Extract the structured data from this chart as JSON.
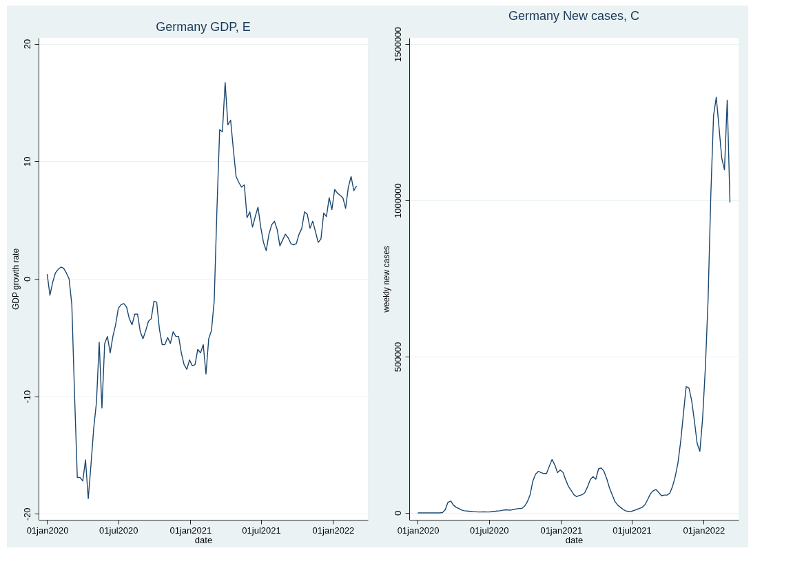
{
  "chart_data": [
    {
      "type": "line",
      "title": "Germany GDP, E",
      "xlabel": "date",
      "ylabel": "GDP growth rate",
      "grid": "y",
      "x": [
        "2020-01-01",
        "2020-01-08",
        "2020-01-15",
        "2020-01-22",
        "2020-01-29",
        "2020-02-05",
        "2020-02-12",
        "2020-02-19",
        "2020-02-26",
        "2020-03-04",
        "2020-03-11",
        "2020-03-18",
        "2020-03-25",
        "2020-04-01",
        "2020-04-08",
        "2020-04-15",
        "2020-04-22",
        "2020-04-29",
        "2020-05-06",
        "2020-05-13",
        "2020-05-20",
        "2020-05-27",
        "2020-06-03",
        "2020-06-10",
        "2020-06-17",
        "2020-06-24",
        "2020-07-01",
        "2020-07-08",
        "2020-07-15",
        "2020-07-22",
        "2020-07-29",
        "2020-08-05",
        "2020-08-12",
        "2020-08-19",
        "2020-08-26",
        "2020-09-02",
        "2020-09-09",
        "2020-09-16",
        "2020-09-23",
        "2020-09-30",
        "2020-10-07",
        "2020-10-14",
        "2020-10-21",
        "2020-10-28",
        "2020-11-04",
        "2020-11-11",
        "2020-11-18",
        "2020-11-25",
        "2020-12-02",
        "2020-12-09",
        "2020-12-16",
        "2020-12-23",
        "2020-12-30",
        "2021-01-06",
        "2021-01-13",
        "2021-01-20",
        "2021-01-27",
        "2021-02-03",
        "2021-02-10",
        "2021-02-17",
        "2021-02-24",
        "2021-03-03",
        "2021-03-10",
        "2021-03-17",
        "2021-03-24",
        "2021-03-31",
        "2021-04-07",
        "2021-04-14",
        "2021-04-21",
        "2021-04-28",
        "2021-05-05",
        "2021-05-12",
        "2021-05-19",
        "2021-05-26",
        "2021-06-02",
        "2021-06-09",
        "2021-06-16",
        "2021-06-23",
        "2021-06-30",
        "2021-07-07",
        "2021-07-14",
        "2021-07-21",
        "2021-07-28",
        "2021-08-04",
        "2021-08-11",
        "2021-08-18",
        "2021-08-25",
        "2021-09-01",
        "2021-09-08",
        "2021-09-15",
        "2021-09-22",
        "2021-09-29",
        "2021-10-06",
        "2021-10-13",
        "2021-10-20",
        "2021-10-27",
        "2021-11-03",
        "2021-11-10",
        "2021-11-17",
        "2021-11-24",
        "2021-12-01",
        "2021-12-08",
        "2021-12-15",
        "2021-12-22",
        "2021-12-29",
        "2022-01-05",
        "2022-01-12",
        "2022-01-19",
        "2022-01-26",
        "2022-02-02",
        "2022-02-09",
        "2022-02-16",
        "2022-02-23",
        "2022-03-02"
      ],
      "series": [
        {
          "color": "#1a476f",
          "values": [
            0.4,
            -1.4,
            -0.3,
            0.5,
            0.8,
            1.0,
            0.9,
            0.5,
            0.0,
            -2.2,
            -9.9,
            -16.9,
            -16.9,
            -17.2,
            -15.4,
            -18.7,
            -15.8,
            -12.7,
            -10.5,
            -5.4,
            -11.0,
            -5.5,
            -4.9,
            -6.3,
            -4.9,
            -3.9,
            -2.5,
            -2.2,
            -2.1,
            -2.4,
            -3.4,
            -3.9,
            -3.0,
            -3.0,
            -4.5,
            -5.1,
            -4.4,
            -3.6,
            -3.4,
            -1.9,
            -2.0,
            -4.3,
            -5.6,
            -5.6,
            -5.0,
            -5.5,
            -4.5,
            -4.9,
            -4.9,
            -6.3,
            -7.3,
            -7.7,
            -6.9,
            -7.4,
            -7.3,
            -6.0,
            -6.3,
            -5.6,
            -8.1,
            -5.1,
            -4.4,
            -1.9,
            5.9,
            12.7,
            12.5,
            16.7,
            13.1,
            13.5,
            11.0,
            8.7,
            8.2,
            7.8,
            8.0,
            5.2,
            5.7,
            4.4,
            5.3,
            6.1,
            4.4,
            3.1,
            2.4,
            3.8,
            4.6,
            4.9,
            4.2,
            2.8,
            3.3,
            3.8,
            3.5,
            3.0,
            2.9,
            3.0,
            3.8,
            4.3,
            5.7,
            5.5,
            4.3,
            4.9,
            4.0,
            3.1,
            3.4,
            5.6,
            5.3,
            6.9,
            5.9,
            7.6,
            7.3,
            7.1,
            6.9,
            6.0,
            7.8,
            8.7,
            7.5,
            7.9
          ]
        }
      ],
      "xlim": [
        "2019-12-10",
        "2022-03-31"
      ],
      "xticks": [
        {
          "value": "2020-01-01",
          "label": "01jan2020"
        },
        {
          "value": "2020-07-01",
          "label": "01jul2020"
        },
        {
          "value": "2021-01-01",
          "label": "01jan2021"
        },
        {
          "value": "2021-07-01",
          "label": "01jul2021"
        },
        {
          "value": "2022-01-01",
          "label": "01jan2022"
        }
      ],
      "ylim": [
        -20.5,
        20.5
      ],
      "yticks": [
        -20,
        -10,
        0,
        10,
        20
      ]
    },
    {
      "type": "line",
      "title": "Germany New cases, C",
      "xlabel": "date",
      "ylabel": "weekly new cases",
      "grid": "y",
      "x": [
        "2020-01-01",
        "2020-01-08",
        "2020-01-15",
        "2020-01-22",
        "2020-01-29",
        "2020-02-05",
        "2020-02-12",
        "2020-02-19",
        "2020-02-26",
        "2020-03-04",
        "2020-03-11",
        "2020-03-18",
        "2020-03-25",
        "2020-04-01",
        "2020-04-08",
        "2020-04-15",
        "2020-04-22",
        "2020-04-29",
        "2020-05-06",
        "2020-05-13",
        "2020-05-20",
        "2020-05-27",
        "2020-06-03",
        "2020-06-10",
        "2020-06-17",
        "2020-06-24",
        "2020-07-01",
        "2020-07-08",
        "2020-07-15",
        "2020-07-22",
        "2020-07-29",
        "2020-08-05",
        "2020-08-12",
        "2020-08-19",
        "2020-08-26",
        "2020-09-02",
        "2020-09-09",
        "2020-09-16",
        "2020-09-23",
        "2020-09-30",
        "2020-10-07",
        "2020-10-14",
        "2020-10-21",
        "2020-10-28",
        "2020-11-04",
        "2020-11-11",
        "2020-11-18",
        "2020-11-25",
        "2020-12-02",
        "2020-12-09",
        "2020-12-16",
        "2020-12-23",
        "2020-12-30",
        "2021-01-06",
        "2021-01-13",
        "2021-01-20",
        "2021-01-27",
        "2021-02-03",
        "2021-02-10",
        "2021-02-17",
        "2021-02-24",
        "2021-03-03",
        "2021-03-10",
        "2021-03-17",
        "2021-03-24",
        "2021-03-31",
        "2021-04-07",
        "2021-04-14",
        "2021-04-21",
        "2021-04-28",
        "2021-05-05",
        "2021-05-12",
        "2021-05-19",
        "2021-05-26",
        "2021-06-02",
        "2021-06-09",
        "2021-06-16",
        "2021-06-23",
        "2021-06-30",
        "2021-07-07",
        "2021-07-14",
        "2021-07-21",
        "2021-07-28",
        "2021-08-04",
        "2021-08-11",
        "2021-08-18",
        "2021-08-25",
        "2021-09-01",
        "2021-09-08",
        "2021-09-15",
        "2021-09-22",
        "2021-09-29",
        "2021-10-06",
        "2021-10-13",
        "2021-10-20",
        "2021-10-27",
        "2021-11-03",
        "2021-11-10",
        "2021-11-17",
        "2021-11-24",
        "2021-12-01",
        "2021-12-08",
        "2021-12-15",
        "2021-12-22",
        "2021-12-29",
        "2022-01-05",
        "2022-01-12",
        "2022-01-19",
        "2022-01-26",
        "2022-02-02",
        "2022-02-09",
        "2022-02-16",
        "2022-02-23",
        "2022-03-02",
        "2022-03-09"
      ],
      "series": [
        {
          "color": "#1a476f",
          "values": [
            0,
            0,
            0,
            0,
            0,
            0,
            0,
            0,
            0,
            1000,
            10000,
            34000,
            38000,
            25000,
            18000,
            14000,
            9000,
            7000,
            6000,
            5000,
            4000,
            3500,
            3000,
            3000,
            3600,
            3000,
            3000,
            4000,
            5000,
            6000,
            7000,
            8500,
            10000,
            9500,
            9000,
            11000,
            13000,
            14000,
            14500,
            22000,
            36000,
            58000,
            102000,
            124000,
            133000,
            129000,
            126000,
            126000,
            149000,
            171000,
            154000,
            129000,
            137000,
            130000,
            106000,
            85000,
            72000,
            58000,
            52000,
            56000,
            58000,
            65000,
            84000,
            107000,
            116000,
            108000,
            141000,
            144000,
            133000,
            109000,
            80000,
            58000,
            36000,
            25000,
            18000,
            11000,
            6500,
            4400,
            5000,
            8000,
            11000,
            14500,
            18000,
            27000,
            44000,
            62000,
            71000,
            75000,
            65000,
            55000,
            57000,
            57000,
            63000,
            84000,
            116000,
            160000,
            229000,
            317000,
            404000,
            400000,
            360000,
            295000,
            223000,
            197000,
            301000,
            463000,
            681000,
            1015000,
            1271000,
            1330000,
            1234000,
            1135000,
            1098000,
            1321000,
            993000
          ]
        }
      ],
      "xlim": [
        "2019-12-10",
        "2022-03-31"
      ],
      "xticks": [
        {
          "value": "2020-01-01",
          "label": "01jan2020"
        },
        {
          "value": "2020-07-01",
          "label": "01jul2020"
        },
        {
          "value": "2021-01-01",
          "label": "01jan2021"
        },
        {
          "value": "2021-07-01",
          "label": "01jul2021"
        },
        {
          "value": "2022-01-01",
          "label": "01jan2022"
        }
      ],
      "ylim": [
        -22000,
        1520000
      ],
      "yticks": [
        0,
        500000,
        1000000,
        1500000
      ]
    }
  ]
}
